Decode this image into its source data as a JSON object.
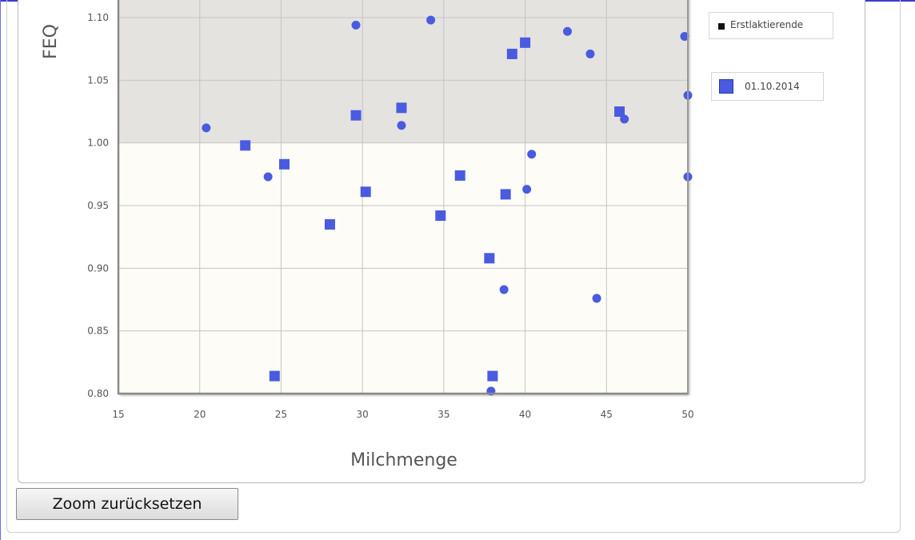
{
  "chart_data": {
    "type": "scatter",
    "xlabel": "Milchmenge",
    "ylabel": "FEQ",
    "xlim": [
      15,
      50
    ],
    "ylim": [
      0.8,
      1.1
    ],
    "x_ticks": [
      "15",
      "20",
      "25",
      "30",
      "35",
      "40",
      "45",
      "50"
    ],
    "y_ticks": [
      "0.80",
      "0.85",
      "0.90",
      "0.95",
      "1.00",
      "1.05",
      "1.10"
    ],
    "grid": true,
    "bands": [
      {
        "from": 1.0,
        "to": 1.1,
        "color": "#e5e3e0"
      },
      {
        "from": 0.8,
        "to": 1.0,
        "color": "#fdfcf6"
      }
    ],
    "legend": [
      {
        "label": "Erstlaktierende",
        "color": "#111111"
      },
      {
        "label": "01.10.2014",
        "color": "#4a5be0"
      }
    ],
    "series": [
      {
        "marker": "circle",
        "color": "#4a5be0",
        "points": [
          [
            20.4,
            1.012
          ],
          [
            24.2,
            0.973
          ],
          [
            29.6,
            1.094
          ],
          [
            32.4,
            1.014
          ],
          [
            34.2,
            1.098
          ],
          [
            37.9,
            0.802
          ],
          [
            38.7,
            0.883
          ],
          [
            40.1,
            0.963
          ],
          [
            40.4,
            0.991
          ],
          [
            42.6,
            1.089
          ],
          [
            44.0,
            1.071
          ],
          [
            44.4,
            0.876
          ],
          [
            46.1,
            1.019
          ],
          [
            49.8,
            1.085
          ],
          [
            50.0,
            1.038
          ],
          [
            50.0,
            0.973
          ]
        ]
      },
      {
        "marker": "square",
        "color": "#4a5be0",
        "points": [
          [
            22.8,
            0.998
          ],
          [
            24.6,
            0.814
          ],
          [
            25.2,
            0.983
          ],
          [
            28.0,
            0.935
          ],
          [
            29.6,
            1.022
          ],
          [
            30.2,
            0.961
          ],
          [
            32.4,
            1.028
          ],
          [
            34.8,
            0.942
          ],
          [
            36.0,
            0.974
          ],
          [
            37.8,
            0.908
          ],
          [
            38.0,
            0.814
          ],
          [
            38.8,
            0.959
          ],
          [
            39.2,
            1.071
          ],
          [
            40.0,
            1.08
          ],
          [
            45.8,
            1.025
          ]
        ]
      }
    ]
  },
  "buttons": {
    "zoom_reset": "Zoom zurücksetzen"
  }
}
